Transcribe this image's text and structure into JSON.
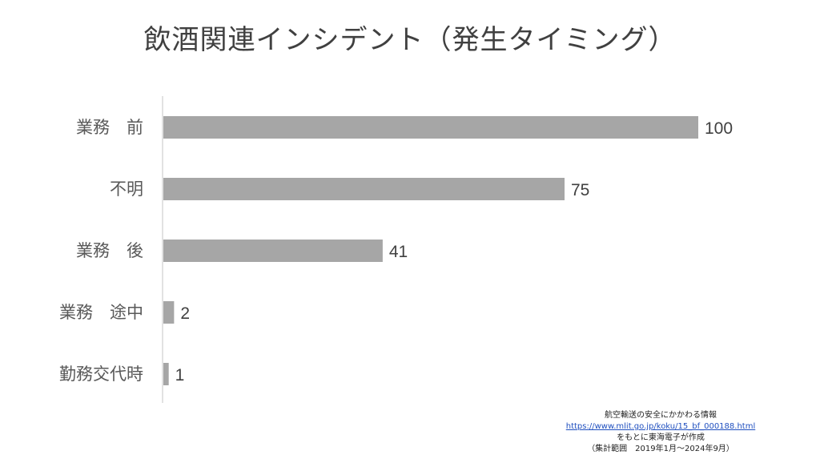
{
  "chart_data": {
    "type": "bar",
    "orientation": "horizontal",
    "title": "飲酒関連インシデント（発生タイミング）",
    "categories": [
      "業務　前",
      "不明",
      "業務　後",
      "業務　途中",
      "勤務交代時"
    ],
    "values": [
      100,
      75,
      41,
      2,
      1
    ],
    "xlim": [
      0,
      100
    ],
    "grid": false,
    "legend": "none",
    "bar_color": "#a6a6a6",
    "axis_color": "#d9d9d9"
  },
  "source": {
    "line1": "航空輸送の安全にかかわる情報",
    "url": "https://www.mlit.go.jp/koku/15_bf_000188.html",
    "line2": "をもとに東海電子が作成",
    "line3": "（集計範囲　2019年1月～2024年9月）"
  }
}
